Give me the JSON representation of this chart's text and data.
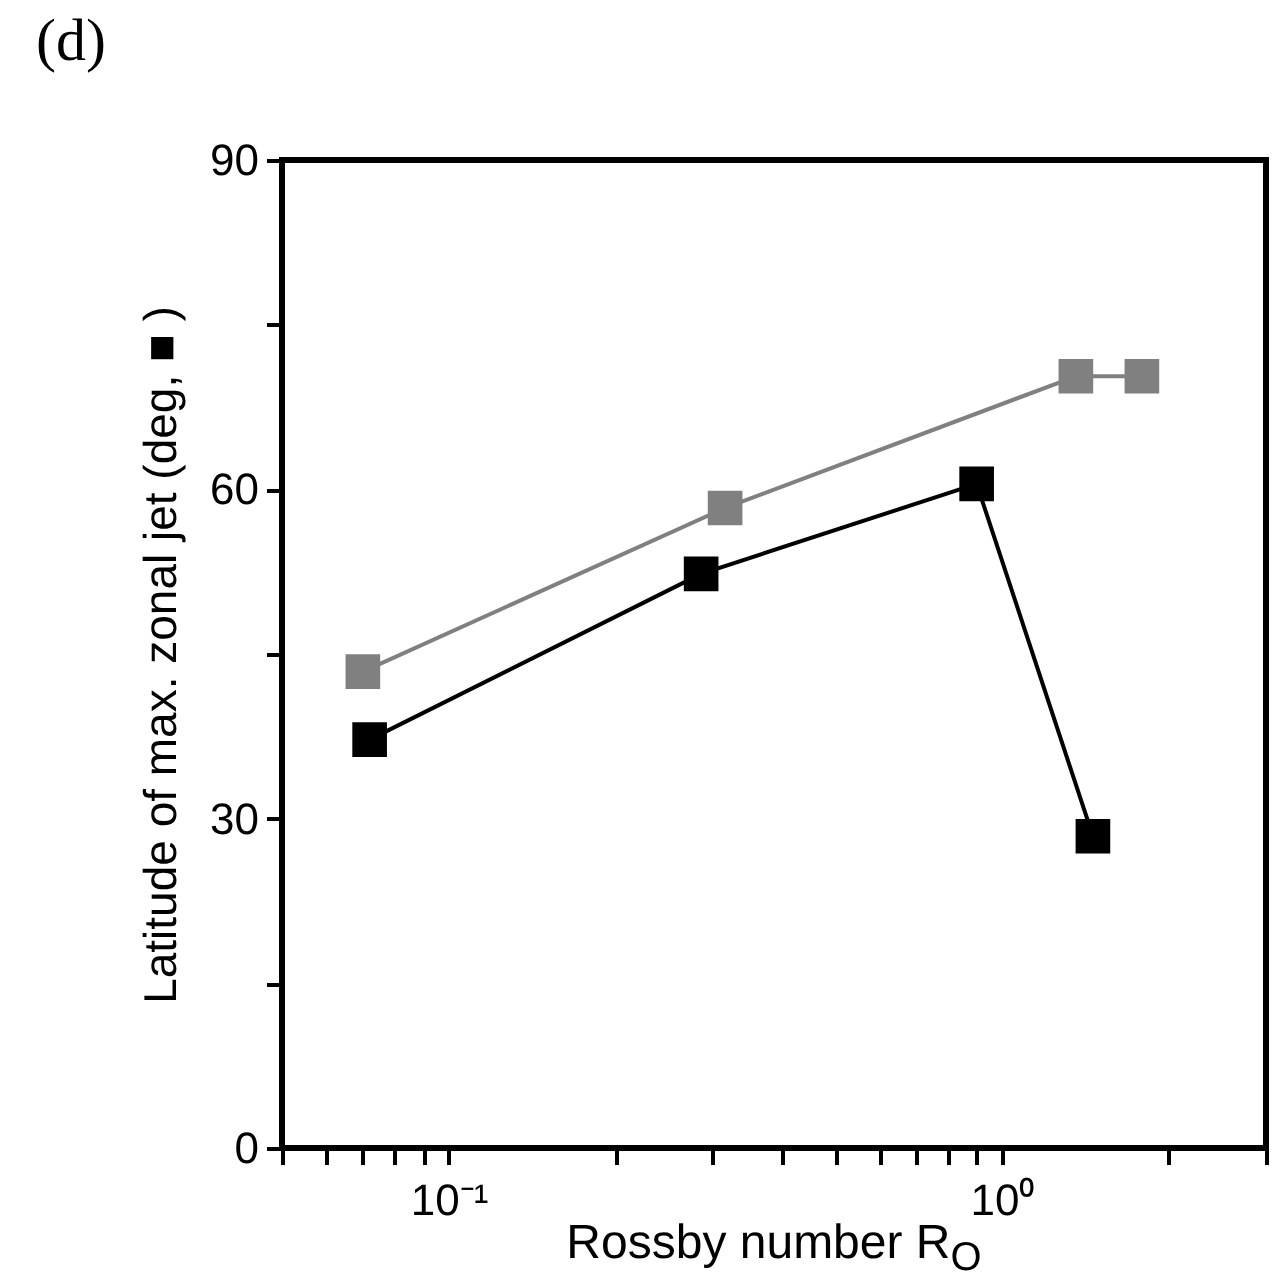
{
  "chart_data": {
    "type": "line",
    "title": "(d)",
    "xlabel": "Rossby number R$_{O}$",
    "ylabel": "Latitude of max. zonal jet (deg, ■ )",
    "log": "x",
    "xlim": [
      0.05,
      3
    ],
    "ylim": [
      0,
      90
    ],
    "xticks": [
      {
        "value": 0.05,
        "label": null
      },
      {
        "value": 0.06,
        "label": null
      },
      {
        "value": 0.07,
        "label": null
      },
      {
        "value": 0.08,
        "label": null
      },
      {
        "value": 0.09,
        "label": null
      },
      {
        "value": 0.1,
        "label": "10⁻¹"
      },
      {
        "value": 0.2,
        "label": null
      },
      {
        "value": 0.3,
        "label": null
      },
      {
        "value": 0.4,
        "label": null
      },
      {
        "value": 0.5,
        "label": null
      },
      {
        "value": 0.6,
        "label": null
      },
      {
        "value": 0.7,
        "label": null
      },
      {
        "value": 0.8,
        "label": null
      },
      {
        "value": 0.9,
        "label": null
      },
      {
        "value": 1,
        "label": "10⁰"
      },
      {
        "value": 2,
        "label": null
      },
      {
        "value": 3,
        "label": null
      }
    ],
    "yticks": [
      0,
      {
        "value": 15,
        "label": null
      },
      30,
      {
        "value": 45,
        "label": null
      },
      60,
      {
        "value": 75,
        "label": null
      },
      90
    ],
    "grid": false,
    "marker": "square",
    "line_style": "solid",
    "series": [
      {
        "color": "#808080",
        "x": [
          0.07,
          0.316,
          1.36,
          1.79
        ],
        "values": [
          43.4,
          58.3,
          70.3,
          70.3
        ]
      },
      {
        "color": "#000000",
        "x": [
          0.072,
          0.286,
          0.9,
          1.46
        ],
        "values": [
          37.2,
          52.3,
          60.5,
          28.4
        ]
      }
    ]
  }
}
